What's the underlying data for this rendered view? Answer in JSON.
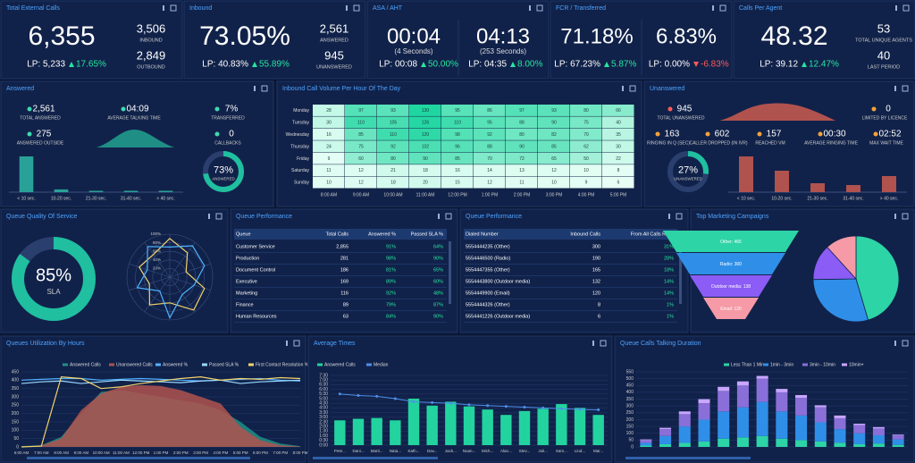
{
  "kpis": [
    {
      "title": "Total External Calls",
      "cells": [
        {
          "main": "6,355",
          "lp": "LP: 5,233",
          "change": "17.65%",
          "trend": "up"
        }
      ],
      "side": [
        {
          "value": "3,506",
          "label": "INBOUND"
        },
        {
          "value": "2,849",
          "label": "OUTBOUND"
        }
      ]
    },
    {
      "title": "Inbound",
      "cells": [
        {
          "main": "73.05%",
          "lp": "LP: 40.83%",
          "change": "55.89%",
          "trend": "up"
        }
      ],
      "side": [
        {
          "value": "2,561",
          "label": "ANSWERED"
        },
        {
          "value": "945",
          "label": "UNANSWERED"
        }
      ]
    },
    {
      "title": "ASA / AHT",
      "cells": [
        {
          "main": "00:04",
          "sub": "(4 Seconds)",
          "lp": "LP: 00:08",
          "change": "50.00%",
          "trend": "up"
        },
        {
          "main": "04:13",
          "sub": "(253 Seconds)",
          "lp": "LP: 04:35",
          "change": "8.00%",
          "trend": "up"
        }
      ]
    },
    {
      "title": "FCR / Transferred",
      "cells": [
        {
          "main": "71.18%",
          "lp": "LP: 67.23%",
          "change": "5.87%",
          "trend": "up"
        },
        {
          "main": "6.83%",
          "lp": "LP: 0.00%",
          "change": "-6.83%",
          "trend": "down"
        }
      ]
    },
    {
      "title": "Calls Per Agent",
      "cells": [
        {
          "main": "48.32",
          "lp": "LP: 39.12",
          "change": "12.47%",
          "trend": "up"
        }
      ],
      "side": [
        {
          "value": "53",
          "label": "TOTAL UNIQUE AGENTS"
        },
        {
          "value": "40",
          "label": "LAST PERIOD"
        }
      ]
    }
  ],
  "answered": {
    "title": "Answered",
    "stats": [
      {
        "value": "2,561",
        "label": "TOTAL ANSWERED"
      },
      {
        "value": "04:09",
        "label": "AVERAGE TALKING TIME"
      },
      {
        "value": "7%",
        "label": "TRANSFERRED"
      },
      {
        "value": "275",
        "label": "ANSWERED OUTSIDE"
      },
      {
        "value": "0",
        "label": "CALLBACKS"
      }
    ],
    "donut": {
      "value": 73,
      "label": "73%",
      "caption": "ANSWERED"
    },
    "histogram": {
      "categories": [
        "< 10 sec.",
        "10-20 sec.",
        "21-30 sec.",
        "31-40 sec.",
        "> 40 sec."
      ],
      "values": [
        26,
        2,
        1,
        1,
        1
      ],
      "color": "#2aa198"
    }
  },
  "heatmap": {
    "title": "Inbound Call Volume Per Hour Of The Day",
    "rows": [
      "Monday",
      "Tuesday",
      "Wednesday",
      "Thursday",
      "Friday",
      "Saturday",
      "Sunday"
    ],
    "columns": [
      "8:00 AM",
      "9:00 AM",
      "10:00 AM",
      "11:00 AM",
      "12:00 PM",
      "1:00 PM",
      "2:00 PM",
      "3:00 PM",
      "4:00 PM",
      "5:00 PM"
    ],
    "values": [
      [
        28,
        97,
        93,
        130,
        95,
        86,
        97,
        93,
        80,
        66
      ],
      [
        30,
        110,
        105,
        126,
        110,
        95,
        88,
        90,
        75,
        40
      ],
      [
        16,
        85,
        110,
        120,
        98,
        92,
        80,
        82,
        70,
        35
      ],
      [
        24,
        75,
        92,
        102,
        96,
        88,
        90,
        85,
        62,
        30
      ],
      [
        9,
        60,
        80,
        90,
        85,
        70,
        72,
        65,
        50,
        22
      ],
      [
        11,
        12,
        21,
        18,
        16,
        14,
        13,
        12,
        10,
        8
      ],
      [
        10,
        12,
        18,
        20,
        15,
        12,
        11,
        10,
        9,
        6
      ]
    ]
  },
  "unanswered": {
    "title": "Unanswered",
    "stats": [
      {
        "value": "945",
        "label": "TOTAL UNANSWERED"
      },
      {
        "value": "0",
        "label": "LIMITED BY LICENCE"
      },
      {
        "value": "163",
        "label": "RINGING IN Q (SEC)"
      },
      {
        "value": "602",
        "label": "CALLER DROPPED (IN IVR)"
      },
      {
        "value": "157",
        "label": "REACHED VM"
      },
      {
        "value": "00:30",
        "label": "AVERAGE RINGING TIME"
      },
      {
        "value": "02:52",
        "label": "MAX WAIT TIME"
      }
    ],
    "donut": {
      "value": 27,
      "label": "27%",
      "caption": "UNANSWERED"
    },
    "histogram": {
      "categories": [
        "< 10 sec.",
        "10-20 sec.",
        "21-30 sec.",
        "31-40 sec.",
        "> 40 sec."
      ],
      "values": [
        20,
        12,
        5,
        4,
        9
      ],
      "color": "#b0524e"
    }
  },
  "quality": {
    "title": "Queue Quality Of Service",
    "donut": {
      "value": 85,
      "label": "85%",
      "caption": "SLA"
    },
    "rticks": [
      {
        "value": 20,
        "label": "20%"
      },
      {
        "value": 40,
        "label": "40%"
      },
      {
        "value": 60,
        "label": "60%"
      },
      {
        "value": 80,
        "label": "80%"
      },
      {
        "value": 100,
        "label": "100%"
      }
    ],
    "series": [
      {
        "color": "#f2d36b",
        "values": [
          90,
          70,
          40,
          85,
          95,
          60,
          80,
          50,
          75,
          65
        ]
      },
      {
        "color": "#4fb3ff",
        "values": [
          70,
          90,
          85,
          60,
          50,
          95,
          40,
          80,
          55,
          88
        ]
      }
    ]
  },
  "queue_table": {
    "title": "Queue Performance",
    "headers": [
      "Queue",
      "Total Calls",
      "Answered %",
      "Passed SLA %"
    ],
    "rows": [
      [
        "Customer Service",
        "2,855",
        "91%",
        "64%"
      ],
      [
        "Production",
        "281",
        "98%",
        "90%"
      ],
      [
        "Document Control",
        "186",
        "81%",
        "65%"
      ],
      [
        "Executive",
        "169",
        "89%",
        "60%"
      ],
      [
        "Marketing",
        "116",
        "92%",
        "48%"
      ],
      [
        "Finance",
        "89",
        "79%",
        "87%"
      ],
      [
        "Human Resources",
        "63",
        "84%",
        "90%"
      ]
    ]
  },
  "dialed_table": {
    "title": "Queue Performance",
    "headers": [
      "Dialed Number",
      "Inbound Calls",
      "From All Calls Ratio"
    ],
    "rows": [
      [
        "5554444235 (Other)",
        "300",
        "31%"
      ],
      [
        "5554446500 (Radio)",
        "190",
        "28%"
      ],
      [
        "5554447355 (Other)",
        "165",
        "18%"
      ],
      [
        "5554443800 (Outdoor media)",
        "132",
        "14%"
      ],
      [
        "5554449900 (Email)",
        "120",
        "14%"
      ],
      [
        "5554444326 (Other)",
        "8",
        "1%"
      ],
      [
        "5554441226 (Outdoor media)",
        "6",
        "1%"
      ]
    ]
  },
  "marketing": {
    "title": "Top Marketing Campaigns",
    "categories": [
      "Other",
      "Radio",
      "Outdoor media",
      "Email"
    ],
    "values": [
      465,
      300,
      138,
      120
    ],
    "value_labels": [
      "Other: 465",
      "Radio: 300",
      "Outdoor media: 138",
      "Email: 120"
    ],
    "colors": [
      "#2dd4a6",
      "#2f8fe8",
      "#8b5cf6",
      "#f59aa6"
    ]
  },
  "utilization": {
    "title": "Queues Utilization By Hours",
    "type": "area",
    "x": [
      "6:00 AM",
      "7:00 AM",
      "8:00 AM",
      "9:00 AM",
      "10:00 AM",
      "11:00 AM",
      "12:00 PM",
      "1:00 PM",
      "2:00 PM",
      "3:00 PM",
      "4:00 PM",
      "5:00 PM",
      "6:00 PM",
      "7:00 PM",
      "8:00 PM"
    ],
    "ylim": [
      0,
      450
    ],
    "yticks": [
      0,
      50,
      100,
      150,
      200,
      250,
      300,
      350,
      400,
      450
    ],
    "series": [
      {
        "name": "Answered Calls",
        "kind": "area",
        "color": "#1f8f86",
        "values": [
          5,
          10,
          60,
          200,
          330,
          340,
          320,
          300,
          280,
          260,
          220,
          150,
          60,
          20,
          5
        ]
      },
      {
        "name": "Unanswered Calls",
        "kind": "area",
        "color": "#b0524e",
        "values": [
          3,
          8,
          50,
          220,
          320,
          360,
          370,
          365,
          340,
          300,
          260,
          120,
          40,
          10,
          3
        ]
      },
      {
        "name": "Answered %",
        "kind": "line",
        "color": "#4fb3ff",
        "values": [
          400,
          405,
          410,
          410,
          400,
          405,
          410,
          405,
          400,
          395,
          400,
          405,
          410,
          400,
          395
        ]
      },
      {
        "name": "Passed SLA %",
        "kind": "line",
        "color": "#9ad9ff",
        "values": [
          380,
          390,
          395,
          380,
          390,
          400,
          395,
          390,
          385,
          395,
          400,
          380,
          390,
          395,
          400
        ]
      },
      {
        "name": "First Contact Resolution %",
        "kind": "line",
        "color": "#f2d36b",
        "values": [
          0,
          5,
          420,
          410,
          350,
          360,
          380,
          395,
          410,
          420,
          400,
          410,
          405,
          415,
          410
        ]
      }
    ]
  },
  "avg_times": {
    "title": "Average Times",
    "type": "bar",
    "categories": [
      "Pete...",
      "Dani...",
      "Marti...",
      "Nata...",
      "Kath...",
      "Dav...",
      "Jack...",
      "Nuan...",
      "Mich...",
      "Alan...",
      "Stev...",
      "Juli...",
      "Sam...",
      "Lind...",
      "Mar..."
    ],
    "ylim": [
      0,
      450
    ],
    "yticks": [
      {
        "value": 0,
        "label": "0:00"
      },
      {
        "value": 30,
        "label": "0:30"
      },
      {
        "value": 60,
        "label": "1:00"
      },
      {
        "value": 90,
        "label": "1:30"
      },
      {
        "value": 120,
        "label": "2:00"
      },
      {
        "value": 150,
        "label": "2:30"
      },
      {
        "value": 180,
        "label": "3:00"
      },
      {
        "value": 210,
        "label": "3:30"
      },
      {
        "value": 240,
        "label": "4:00"
      },
      {
        "value": 270,
        "label": "4:30"
      },
      {
        "value": 300,
        "label": "5:00"
      },
      {
        "value": 330,
        "label": "5:30"
      },
      {
        "value": 360,
        "label": "6:00"
      },
      {
        "value": 390,
        "label": "6:30"
      },
      {
        "value": 420,
        "label": "7:00"
      },
      {
        "value": 450,
        "label": "7:30"
      }
    ],
    "series": [
      {
        "name": "Answered Calls",
        "kind": "bar",
        "color": "#22d3a0",
        "values": [
          160,
          170,
          175,
          160,
          300,
          255,
          280,
          250,
          230,
          195,
          220,
          235,
          265,
          240,
          195
        ]
      },
      {
        "name": "Median",
        "kind": "line",
        "color": "#4f8fe8",
        "values": [
          330,
          320,
          315,
          300,
          280,
          275,
          270,
          260,
          255,
          250,
          245,
          240,
          235,
          230,
          228
        ]
      }
    ]
  },
  "duration": {
    "title": "Queue Calls Talking Duration",
    "type": "stacked_bar",
    "ylim": [
      0,
      550
    ],
    "yticks": [
      0,
      50,
      100,
      150,
      200,
      250,
      300,
      350,
      400,
      450,
      500,
      550
    ],
    "series": [
      {
        "name": "Less Than 1 Min",
        "color": "#2dd4a6",
        "values": [
          10,
          20,
          30,
          40,
          60,
          70,
          80,
          60,
          50,
          40,
          30,
          20,
          25,
          15
        ]
      },
      {
        "name": "1min - 3min",
        "color": "#2f8fe8",
        "values": [
          20,
          60,
          120,
          160,
          200,
          220,
          250,
          200,
          180,
          140,
          100,
          80,
          60,
          40
        ]
      },
      {
        "name": "3min - 10min",
        "color": "#8a6fd8",
        "values": [
          20,
          50,
          90,
          120,
          150,
          160,
          170,
          140,
          130,
          110,
          80,
          60,
          50,
          30
        ]
      },
      {
        "name": "10min+",
        "color": "#c9a6ff",
        "values": [
          5,
          10,
          20,
          30,
          30,
          30,
          20,
          25,
          20,
          15,
          20,
          10,
          10,
          5
        ]
      }
    ]
  }
}
